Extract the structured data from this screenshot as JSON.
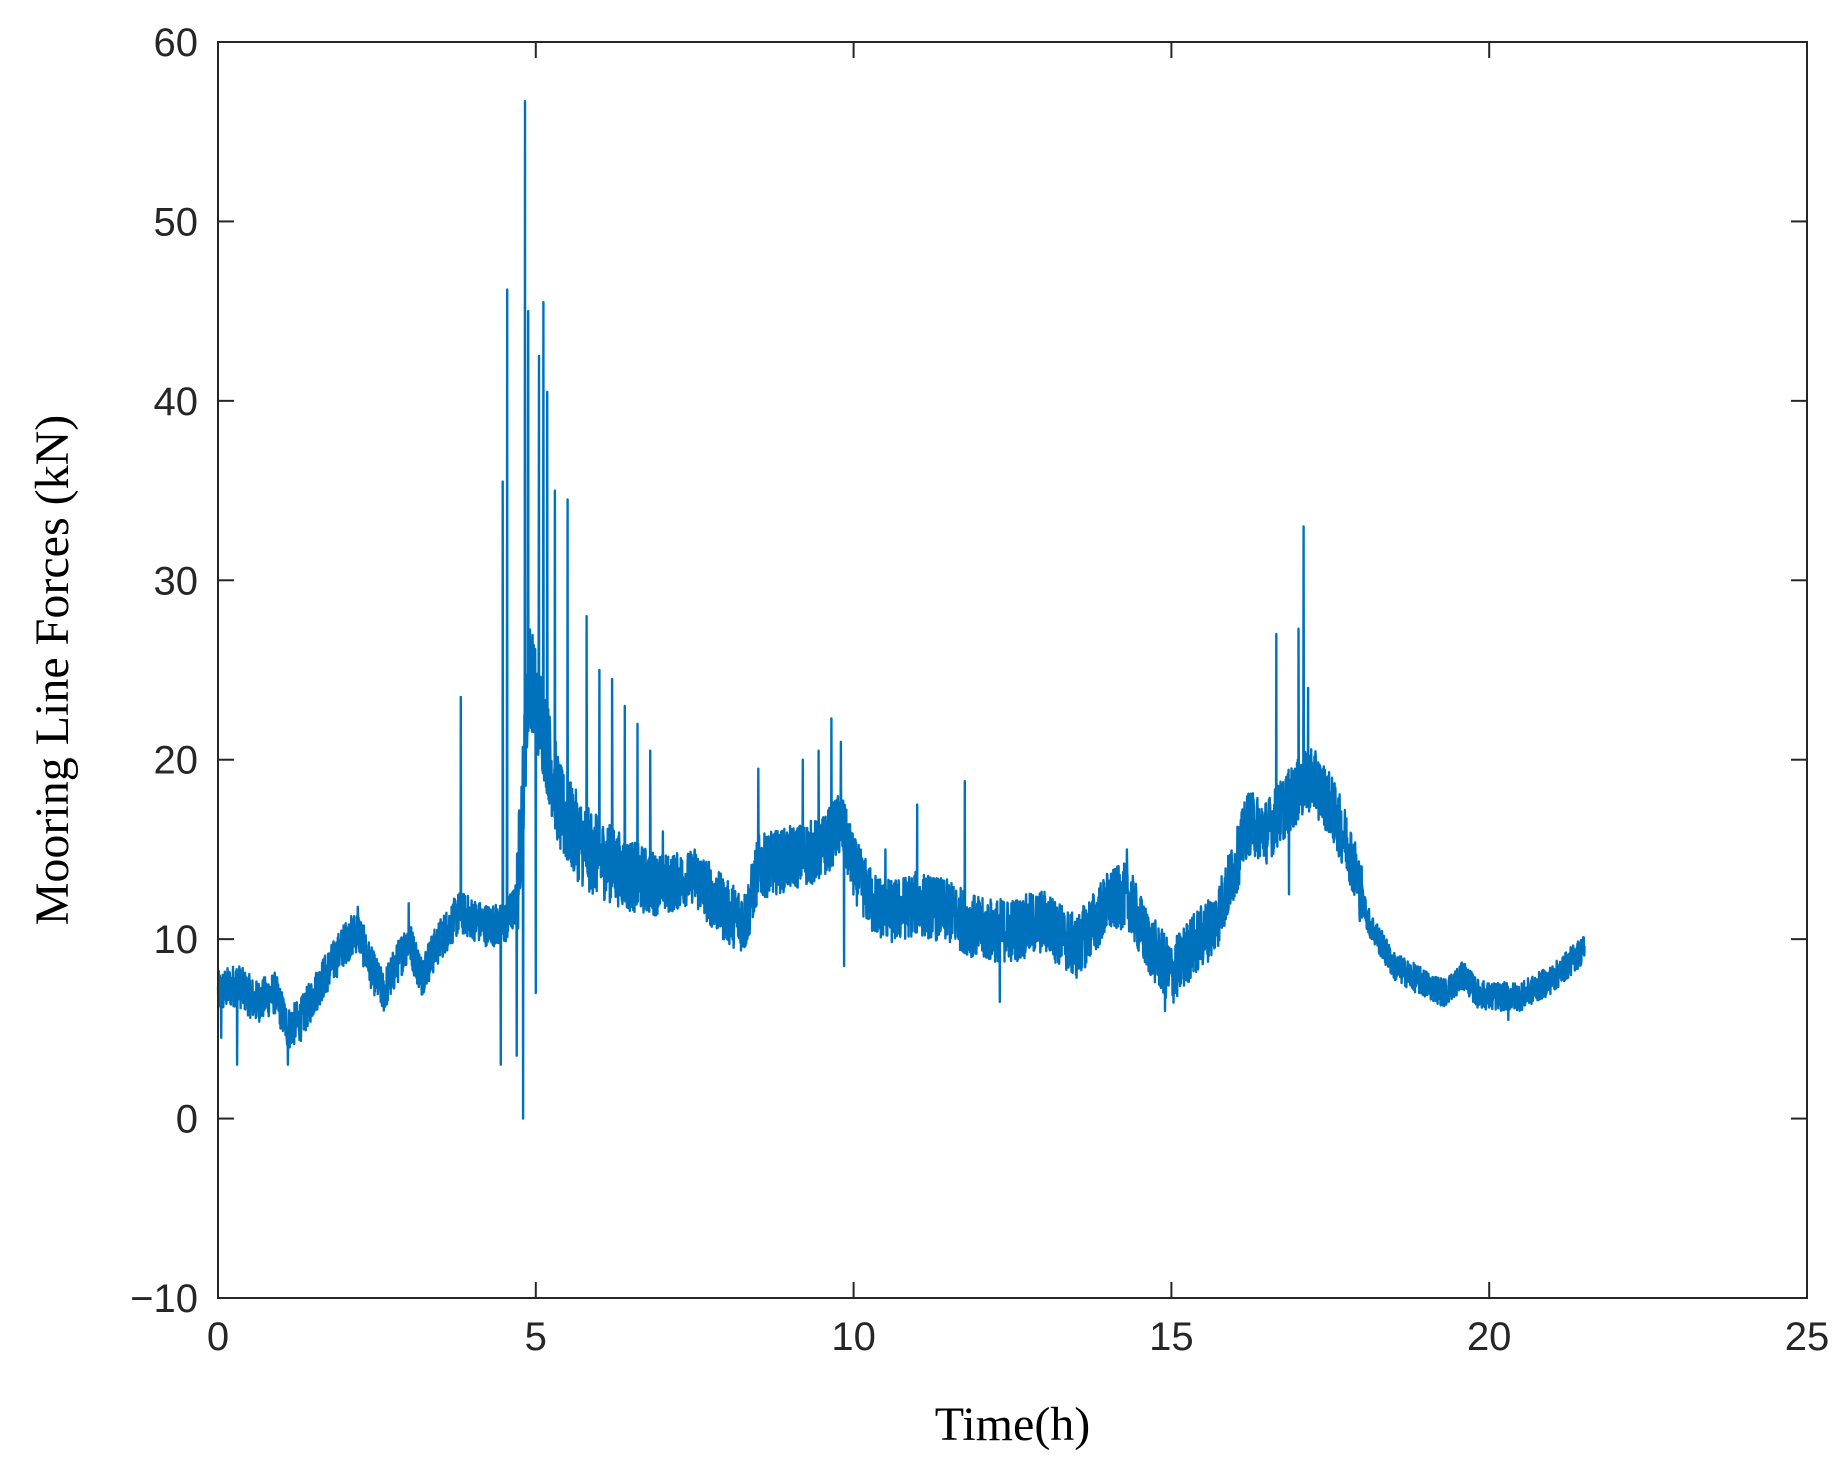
{
  "chart_data": {
    "type": "line",
    "xlabel": "Time(h)",
    "ylabel": "Mooring Line Forces  (kN)",
    "xlim": [
      0,
      25
    ],
    "ylim": [
      -10,
      60
    ],
    "xticks": [
      0,
      5,
      10,
      15,
      20,
      25
    ],
    "yticks": [
      -10,
      0,
      10,
      20,
      30,
      40,
      50,
      60
    ],
    "xtick_labels": [
      "0",
      "5",
      "10",
      "15",
      "20",
      "25"
    ],
    "ytick_labels": [
      "−10",
      "0",
      "10",
      "20",
      "30",
      "40",
      "50",
      "60"
    ],
    "grid": false,
    "legend": "none",
    "series": [
      {
        "color": "#0072BD",
        "x_range": [
          0,
          21.5
        ],
        "baseline": [
          [
            0.0,
            7.0
          ],
          [
            0.3,
            7.5
          ],
          [
            0.6,
            6.5
          ],
          [
            0.9,
            7.0
          ],
          [
            1.1,
            5.0
          ],
          [
            1.3,
            5.5
          ],
          [
            1.6,
            7.5
          ],
          [
            2.0,
            9.8
          ],
          [
            2.2,
            10.5
          ],
          [
            2.4,
            8.5
          ],
          [
            2.6,
            7.0
          ],
          [
            2.8,
            8.5
          ],
          [
            3.0,
            10.0
          ],
          [
            3.2,
            8.0
          ],
          [
            3.5,
            10.0
          ],
          [
            3.8,
            11.5
          ],
          [
            4.2,
            10.8
          ],
          [
            4.5,
            10.8
          ],
          [
            4.7,
            12.0
          ],
          [
            4.9,
            25.0
          ],
          [
            5.1,
            22.0
          ],
          [
            5.4,
            17.0
          ],
          [
            5.8,
            15.0
          ],
          [
            6.5,
            13.5
          ],
          [
            7.0,
            13.0
          ],
          [
            7.5,
            13.5
          ],
          [
            8.0,
            11.5
          ],
          [
            8.3,
            11.0
          ],
          [
            8.5,
            14.0
          ],
          [
            9.0,
            14.5
          ],
          [
            9.5,
            15.0
          ],
          [
            9.8,
            16.5
          ],
          [
            10.0,
            14.0
          ],
          [
            10.3,
            12.0
          ],
          [
            10.6,
            11.5
          ],
          [
            11.0,
            12.0
          ],
          [
            11.5,
            11.5
          ],
          [
            12.0,
            10.5
          ],
          [
            12.5,
            10.5
          ],
          [
            13.0,
            11.0
          ],
          [
            13.5,
            9.5
          ],
          [
            14.0,
            12.0
          ],
          [
            14.3,
            12.5
          ],
          [
            14.6,
            10.0
          ],
          [
            15.0,
            8.0
          ],
          [
            15.3,
            9.5
          ],
          [
            15.7,
            11.0
          ],
          [
            16.0,
            14.0
          ],
          [
            16.2,
            16.5
          ],
          [
            16.5,
            16.0
          ],
          [
            16.8,
            17.5
          ],
          [
            17.2,
            19.0
          ],
          [
            17.5,
            17.5
          ],
          [
            17.8,
            15.0
          ],
          [
            18.1,
            11.0
          ],
          [
            18.5,
            8.5
          ],
          [
            19.0,
            7.5
          ],
          [
            19.3,
            7.0
          ],
          [
            19.6,
            8.0
          ],
          [
            19.8,
            7.0
          ],
          [
            20.0,
            6.8
          ],
          [
            20.5,
            6.8
          ],
          [
            21.0,
            7.8
          ],
          [
            21.5,
            9.5
          ]
        ],
        "spikes": [
          [
            0.05,
            4.5
          ],
          [
            0.3,
            3.0
          ],
          [
            1.1,
            3.0
          ],
          [
            2.2,
            11.8
          ],
          [
            3.0,
            12.0
          ],
          [
            3.82,
            23.5
          ],
          [
            4.45,
            3.0
          ],
          [
            4.48,
            35.5
          ],
          [
            4.55,
            46.2
          ],
          [
            4.7,
            3.5
          ],
          [
            4.8,
            0.0
          ],
          [
            4.83,
            56.7
          ],
          [
            4.88,
            45.0
          ],
          [
            5.0,
            7.0
          ],
          [
            5.05,
            42.5
          ],
          [
            5.12,
            45.5
          ],
          [
            5.18,
            40.5
          ],
          [
            5.3,
            35.0
          ],
          [
            5.5,
            34.5
          ],
          [
            5.8,
            28.0
          ],
          [
            6.0,
            25.0
          ],
          [
            6.2,
            24.5
          ],
          [
            6.4,
            23.0
          ],
          [
            6.6,
            22.0
          ],
          [
            6.8,
            20.5
          ],
          [
            7.0,
            16.0
          ],
          [
            8.5,
            19.5
          ],
          [
            9.2,
            20.0
          ],
          [
            9.45,
            20.5
          ],
          [
            9.65,
            22.3
          ],
          [
            9.8,
            21.0
          ],
          [
            9.85,
            8.5
          ],
          [
            10.5,
            15.0
          ],
          [
            11.0,
            17.5
          ],
          [
            11.5,
            13.0
          ],
          [
            11.75,
            18.8
          ],
          [
            12.3,
            6.5
          ],
          [
            14.3,
            15.0
          ],
          [
            14.9,
            6.0
          ],
          [
            16.65,
            27.0
          ],
          [
            16.85,
            12.5
          ],
          [
            17.0,
            27.3
          ],
          [
            17.08,
            33.0
          ],
          [
            17.15,
            24.0
          ],
          [
            20.3,
            5.5
          ]
        ]
      }
    ]
  }
}
